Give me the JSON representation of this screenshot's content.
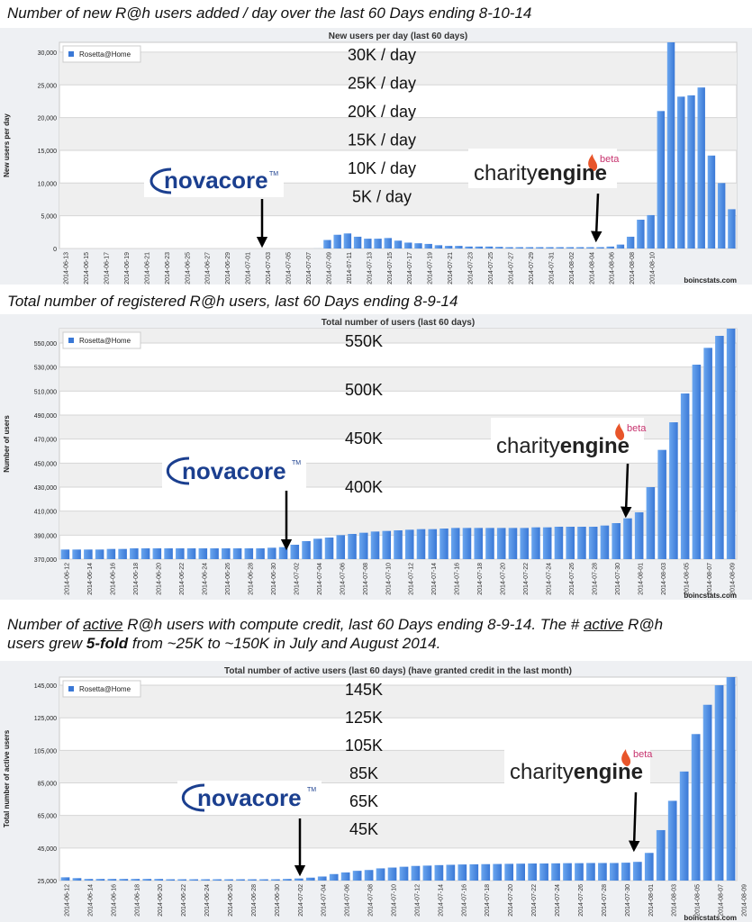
{
  "captions": {
    "c1": "Number of new R@h users added / day over the last 60 Days ending 8-10-14",
    "c2": "Total number of registered R@h users, last 60 Days ending 8-9-14",
    "c3_a": "Number of ",
    "c3_b": "active",
    "c3_c": " R@h users with compute credit, last 60 Days ending 8-9-14. The # ",
    "c3_d": "active",
    "c3_e": " R@h",
    "c3_f": "users grew ",
    "c3_g": "5-fold",
    "c3_h": " from ~25K to ~150K in July and August 2014."
  },
  "logos": {
    "novacore": "novacore",
    "tm": "TM",
    "charity": "charity",
    "engine": "engine",
    "beta": "beta"
  },
  "credit": "boincstats.com",
  "colors": {
    "bar": "#3a78d6",
    "bar_light": "#6aa6ef",
    "band": "#efefef",
    "arrow": "#000000",
    "flame": "#e8552a"
  },
  "chart_data": [
    {
      "type": "bar",
      "title": "New users per day (last 60 days)",
      "ylabel": "New users per day",
      "legend": "Rosetta@Home",
      "legend_position": "top-left",
      "ylim": [
        0,
        31500
      ],
      "yticks": [
        0,
        5000,
        10000,
        15000,
        20000,
        25000,
        30000
      ],
      "ytick_labels": [
        "0",
        "5,000",
        "10,000",
        "15,000",
        "20,000",
        "25,000",
        "30,000"
      ],
      "annotations": [
        "30K / day",
        "25K / day",
        "20K / day",
        "15K / day",
        "10K / day",
        "5K / day"
      ],
      "x_labels": [
        "2014-06-13",
        "2014-06-15",
        "2014-06-17",
        "2014-06-19",
        "2014-06-21",
        "2014-06-23",
        "2014-06-25",
        "2014-06-27",
        "2014-06-29",
        "2014-07-01",
        "2014-07-03",
        "2014-07-05",
        "2014-07-07",
        "2014-07-09",
        "2014-07-11",
        "2014-07-13",
        "2014-07-15",
        "2014-07-17",
        "2014-07-19",
        "2014-07-21",
        "2014-07-23",
        "2014-07-25",
        "2014-07-27",
        "2014-07-29",
        "2014-07-31",
        "2014-08-02",
        "2014-08-04",
        "2014-08-06",
        "2014-08-08",
        "2014-08-10"
      ],
      "series": [
        {
          "values": [
            0,
            0,
            0,
            0,
            0,
            0,
            0,
            0,
            0,
            0,
            0,
            0,
            0,
            0,
            0,
            0,
            0,
            0,
            0,
            0,
            0,
            0,
            0,
            0,
            0,
            10,
            1300,
            2100,
            2300,
            1800,
            1500,
            1500,
            1600,
            1200,
            900,
            800,
            700,
            500,
            400,
            400,
            300,
            300,
            300,
            250,
            200,
            200,
            200,
            200,
            200,
            200,
            200,
            200,
            200,
            200,
            300,
            600,
            1800,
            4400,
            5100,
            21000,
            31500,
            23200,
            23400,
            24600,
            14200,
            10000,
            6000
          ]
        }
      ]
    },
    {
      "type": "bar",
      "title": "Total number of users (last 60 days)",
      "ylabel": "Number of users",
      "legend": "Rosetta@Home",
      "legend_position": "top-left",
      "ylim": [
        370000,
        562000
      ],
      "yticks": [
        370000,
        390000,
        410000,
        430000,
        450000,
        470000,
        490000,
        510000,
        530000,
        550000
      ],
      "ytick_labels": [
        "370,000",
        "390,000",
        "410,000",
        "430,000",
        "450,000",
        "470,000",
        "490,000",
        "510,000",
        "530,000",
        "550,000"
      ],
      "annotations": [
        "550K",
        "500K",
        "450K",
        "400K"
      ],
      "x_labels": [
        "2014-06-12",
        "2014-06-14",
        "2014-06-16",
        "2014-06-18",
        "2014-06-20",
        "2014-06-22",
        "2014-06-24",
        "2014-06-26",
        "2014-06-28",
        "2014-06-30",
        "2014-07-02",
        "2014-07-04",
        "2014-07-06",
        "2014-07-08",
        "2014-07-10",
        "2014-07-12",
        "2014-07-14",
        "2014-07-16",
        "2014-07-18",
        "2014-07-20",
        "2014-07-22",
        "2014-07-24",
        "2014-07-26",
        "2014-07-28",
        "2014-07-30",
        "2014-08-01",
        "2014-08-03",
        "2014-08-05",
        "2014-08-07",
        "2014-08-09"
      ],
      "series": [
        {
          "values": [
            378000,
            378000,
            378000,
            378000,
            378500,
            378500,
            379000,
            379000,
            379000,
            379000,
            379000,
            379000,
            379000,
            379000,
            379000,
            379000,
            379000,
            379000,
            379500,
            380000,
            382000,
            385000,
            387000,
            388000,
            390000,
            391000,
            392000,
            393000,
            393500,
            394000,
            394500,
            395000,
            395000,
            395500,
            396000,
            396000,
            396000,
            396000,
            396000,
            396000,
            396000,
            396500,
            396500,
            397000,
            397000,
            397000,
            397000,
            398000,
            400000,
            404000,
            409000,
            430000,
            461000,
            484000,
            508000,
            532000,
            546000,
            556000,
            562000
          ]
        }
      ]
    },
    {
      "type": "bar",
      "title": "Total number of active users (last 60 days) (have granted credit in the last month)",
      "ylabel": "Total number of active users",
      "legend": "Rosetta@Home",
      "legend_position": "top-left",
      "ylim": [
        25000,
        150000
      ],
      "yticks": [
        25000,
        45000,
        65000,
        85000,
        105000,
        125000,
        145000
      ],
      "ytick_labels": [
        "25,000",
        "45,000",
        "65,000",
        "85,000",
        "105,000",
        "125,000",
        "145,000"
      ],
      "annotations": [
        "145K",
        "125K",
        "105K",
        "85K",
        "65K",
        "45K"
      ],
      "x_labels": [
        "2014-06-12",
        "2014-06-14",
        "2014-06-16",
        "2014-06-18",
        "2014-06-20",
        "2014-06-22",
        "2014-06-24",
        "2014-06-26",
        "2014-06-28",
        "2014-06-30",
        "2014-07-02",
        "2014-07-04",
        "2014-07-06",
        "2014-07-08",
        "2014-07-10",
        "2014-07-12",
        "2014-07-14",
        "2014-07-16",
        "2014-07-18",
        "2014-07-20",
        "2014-07-22",
        "2014-07-24",
        "2014-07-26",
        "2014-07-28",
        "2014-07-30",
        "2014-08-01",
        "2014-08-03",
        "2014-08-05",
        "2014-08-07",
        "2014-08-09"
      ],
      "series": [
        {
          "values": [
            27000,
            26500,
            26000,
            26000,
            26000,
            26000,
            26000,
            26000,
            26000,
            25800,
            25800,
            25800,
            25800,
            25800,
            25800,
            25800,
            25800,
            25800,
            25800,
            26000,
            26300,
            26800,
            27500,
            29000,
            30000,
            31000,
            31500,
            32500,
            33000,
            33500,
            34000,
            34200,
            34500,
            34700,
            34900,
            35000,
            35100,
            35200,
            35300,
            35400,
            35500,
            35500,
            35600,
            35700,
            35700,
            35800,
            35800,
            35800,
            36000,
            36500,
            42000,
            56000,
            74000,
            92000,
            115000,
            133000,
            145000,
            150000
          ]
        }
      ]
    }
  ]
}
